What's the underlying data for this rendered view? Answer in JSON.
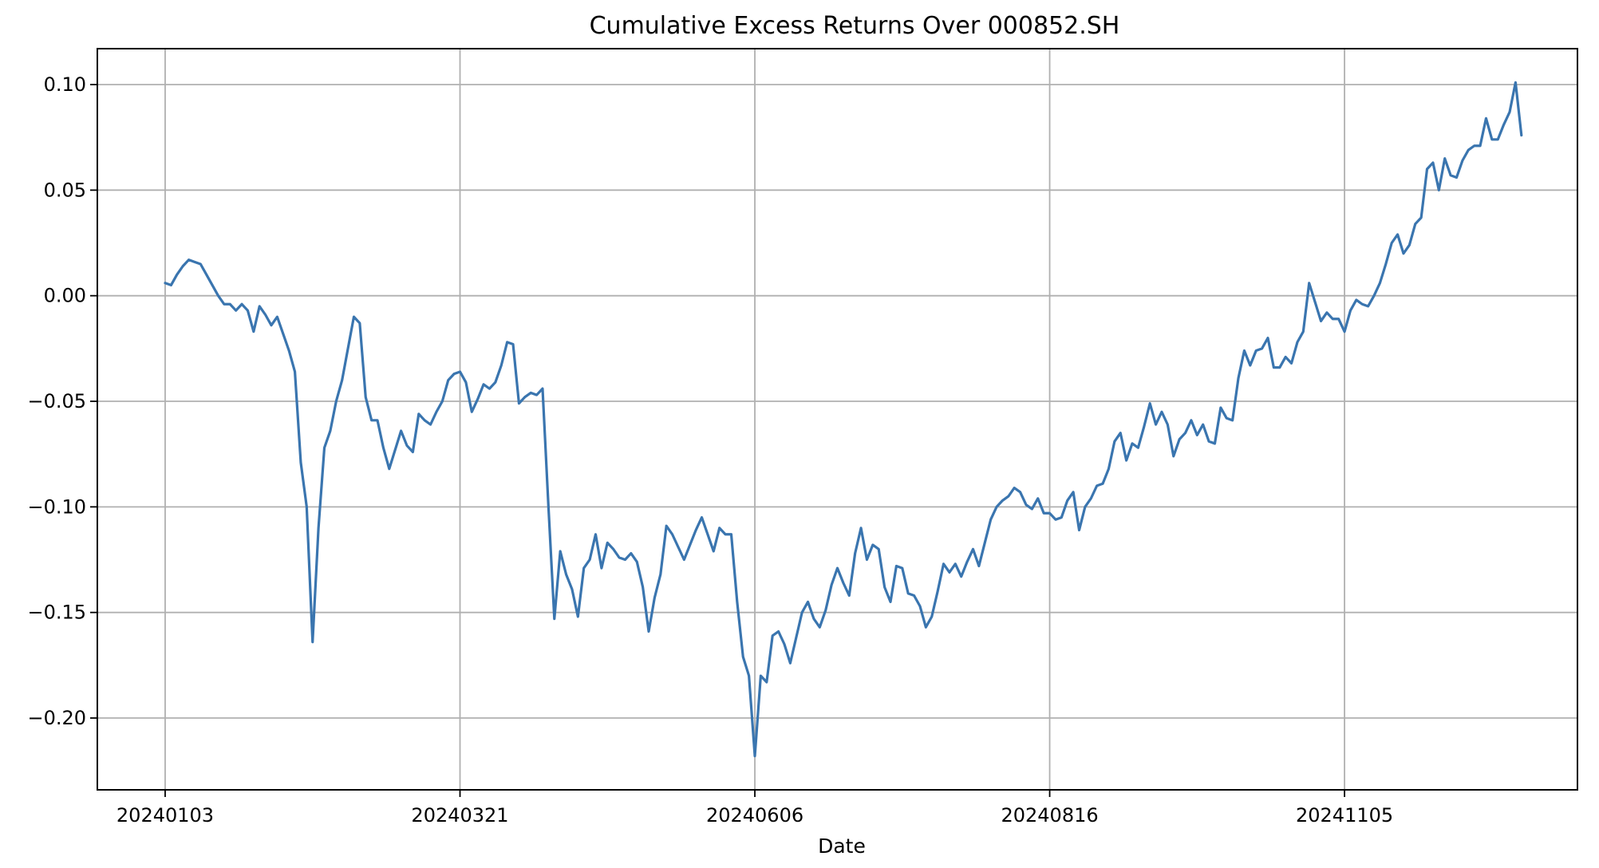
{
  "chart_data": {
    "type": "line",
    "title": "Cumulative Excess Returns Over 000852.SH",
    "xlabel": "Date",
    "ylabel": "",
    "x_ticks": [
      "20240103",
      "20240321",
      "20240606",
      "20240816",
      "20241105"
    ],
    "x_tick_index": [
      0,
      50,
      100,
      150,
      200
    ],
    "y_ticks": [
      -0.2,
      -0.15,
      -0.1,
      -0.05,
      0.0,
      0.05,
      0.1
    ],
    "y_tick_labels": [
      "−0.20",
      "−0.15",
      "−0.10",
      "−0.05",
      "0.00",
      "0.05",
      "0.10"
    ],
    "xlim": [
      -11.5,
      239.5
    ],
    "ylim": [
      -0.234,
      0.117
    ],
    "grid": true,
    "color": "#3a75af",
    "series": [
      {
        "values": [
          0.006,
          0.005,
          0.01,
          0.014,
          0.017,
          0.016,
          0.015,
          0.01,
          0.005,
          0.0,
          -0.004,
          -0.004,
          -0.007,
          -0.004,
          -0.007,
          -0.017,
          -0.005,
          -0.009,
          -0.014,
          -0.01,
          -0.018,
          -0.026,
          -0.036,
          -0.079,
          -0.1,
          -0.164,
          -0.11,
          -0.072,
          -0.064,
          -0.05,
          -0.04,
          -0.025,
          -0.01,
          -0.013,
          -0.048,
          -0.059,
          -0.059,
          -0.072,
          -0.082,
          -0.073,
          -0.064,
          -0.071,
          -0.074,
          -0.056,
          -0.059,
          -0.061,
          -0.055,
          -0.05,
          -0.04,
          -0.037,
          -0.036,
          -0.041,
          -0.055,
          -0.049,
          -0.042,
          -0.044,
          -0.041,
          -0.033,
          -0.022,
          -0.023,
          -0.051,
          -0.048,
          -0.046,
          -0.047,
          -0.044,
          -0.1,
          -0.153,
          -0.121,
          -0.132,
          -0.139,
          -0.152,
          -0.129,
          -0.125,
          -0.113,
          -0.129,
          -0.117,
          -0.12,
          -0.124,
          -0.125,
          -0.122,
          -0.126,
          -0.138,
          -0.159,
          -0.143,
          -0.132,
          -0.109,
          -0.113,
          -0.119,
          -0.125,
          -0.118,
          -0.111,
          -0.105,
          -0.113,
          -0.121,
          -0.11,
          -0.113,
          -0.113,
          -0.145,
          -0.171,
          -0.18,
          -0.218,
          -0.18,
          -0.183,
          -0.161,
          -0.159,
          -0.165,
          -0.174,
          -0.162,
          -0.15,
          -0.145,
          -0.153,
          -0.157,
          -0.149,
          -0.137,
          -0.129,
          -0.136,
          -0.142,
          -0.122,
          -0.11,
          -0.125,
          -0.118,
          -0.12,
          -0.138,
          -0.145,
          -0.128,
          -0.129,
          -0.141,
          -0.142,
          -0.147,
          -0.157,
          -0.152,
          -0.14,
          -0.127,
          -0.131,
          -0.127,
          -0.133,
          -0.126,
          -0.12,
          -0.128,
          -0.117,
          -0.106,
          -0.1,
          -0.097,
          -0.095,
          -0.091,
          -0.093,
          -0.099,
          -0.101,
          -0.096,
          -0.103,
          -0.103,
          -0.106,
          -0.105,
          -0.097,
          -0.093,
          -0.111,
          -0.1,
          -0.096,
          -0.09,
          -0.089,
          -0.082,
          -0.069,
          -0.065,
          -0.078,
          -0.07,
          -0.072,
          -0.062,
          -0.051,
          -0.061,
          -0.055,
          -0.061,
          -0.076,
          -0.068,
          -0.065,
          -0.059,
          -0.066,
          -0.061,
          -0.069,
          -0.07,
          -0.053,
          -0.058,
          -0.059,
          -0.039,
          -0.026,
          -0.033,
          -0.026,
          -0.025,
          -0.02,
          -0.034,
          -0.034,
          -0.029,
          -0.032,
          -0.022,
          -0.017,
          0.006,
          -0.003,
          -0.012,
          -0.008,
          -0.011,
          -0.011,
          -0.017,
          -0.007,
          -0.002,
          -0.004,
          -0.005,
          0.0,
          0.006,
          0.015,
          0.025,
          0.029,
          0.02,
          0.024,
          0.034,
          0.037,
          0.06,
          0.063,
          0.05,
          0.065,
          0.057,
          0.056,
          0.064,
          0.069,
          0.071,
          0.071,
          0.084,
          0.074,
          0.074,
          0.081,
          0.087,
          0.101,
          0.076
        ]
      }
    ]
  }
}
